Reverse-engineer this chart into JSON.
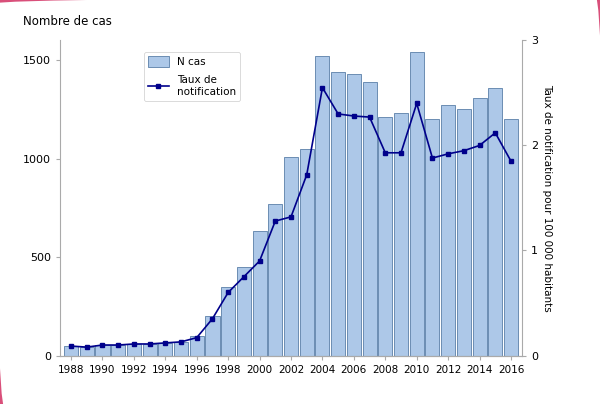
{
  "years": [
    1988,
    1989,
    1990,
    1991,
    1992,
    1993,
    1994,
    1995,
    1996,
    1997,
    1998,
    1999,
    2000,
    2001,
    2002,
    2003,
    2004,
    2005,
    2006,
    2007,
    2008,
    2009,
    2010,
    2011,
    2012,
    2013,
    2014,
    2015,
    2016
  ],
  "n_cas": [
    50,
    45,
    55,
    55,
    60,
    60,
    65,
    70,
    100,
    200,
    350,
    450,
    630,
    770,
    1010,
    1050,
    1520,
    1440,
    1430,
    1390,
    1210,
    1230,
    1540,
    1200,
    1270,
    1250,
    1310,
    1360,
    1200
  ],
  "taux": [
    0.09,
    0.08,
    0.1,
    0.1,
    0.11,
    0.11,
    0.12,
    0.13,
    0.17,
    0.35,
    0.6,
    0.75,
    0.9,
    1.28,
    1.32,
    1.72,
    2.55,
    2.3,
    2.28,
    2.27,
    1.93,
    1.93,
    2.4,
    1.88,
    1.92,
    1.95,
    2.0,
    2.12,
    1.85
  ],
  "bar_color": "#adc8e8",
  "bar_edge_color": "#5a7fa8",
  "line_color": "#00008B",
  "ylabel_left": "Nombre de cas",
  "ylabel_right": "Taux de notification pour 100 000 habitants",
  "ylim_left": [
    0,
    1600
  ],
  "ylim_right": [
    0,
    3
  ],
  "yticks_left": [
    0,
    500,
    1000,
    1500
  ],
  "yticks_right": [
    0,
    1,
    2,
    3
  ],
  "xtick_years": [
    1988,
    1990,
    1992,
    1994,
    1996,
    1998,
    2000,
    2002,
    2004,
    2006,
    2008,
    2010,
    2012,
    2014,
    2016
  ],
  "legend_ncas": "N cas",
  "legend_taux": "Taux de\nnotification",
  "bg_color": "#ffffff",
  "border_color": "#d94f7a"
}
